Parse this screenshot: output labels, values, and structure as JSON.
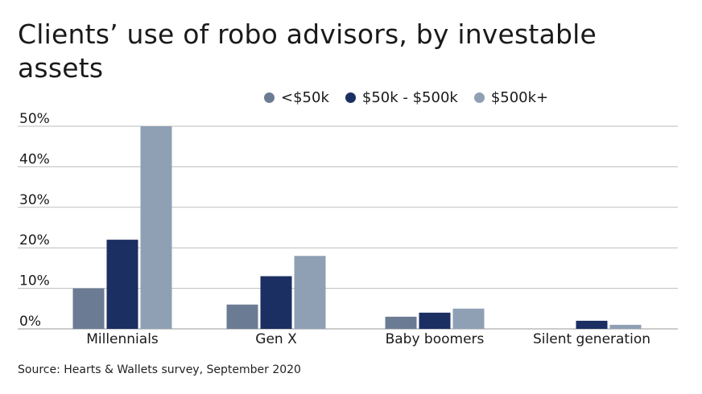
{
  "title": "Clients’ use of robo advisors, by investable assets",
  "source": "Source: Hearts & Wallets survey, September 2020",
  "chart_data": {
    "type": "bar",
    "title": "Clients’ use of robo advisors, by investable assets",
    "xlabel": "",
    "ylabel": "",
    "categories": [
      "Millennials",
      "Gen X",
      "Baby boomers",
      "Silent generation"
    ],
    "series": [
      {
        "name": "<$50k",
        "color": "#6b7b93",
        "values": [
          10,
          6,
          3,
          0
        ]
      },
      {
        "name": "$50k - $500k",
        "color": "#1c2f63",
        "values": [
          22,
          13,
          4,
          2
        ]
      },
      {
        "name": "$500k+",
        "color": "#8fa0b5",
        "values": [
          50,
          18,
          5,
          1
        ]
      }
    ],
    "ylim": [
      0,
      50
    ],
    "yticks": [
      0,
      10,
      20,
      30,
      40,
      50
    ],
    "ytick_labels": [
      "0%",
      "10%",
      "20%",
      "30%",
      "40%",
      "50%"
    ],
    "grid": true,
    "legend_position": "top"
  }
}
